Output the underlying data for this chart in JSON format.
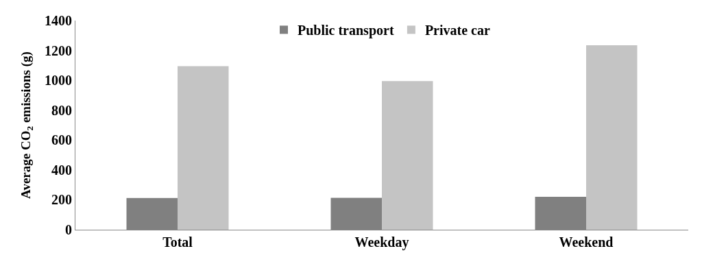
{
  "chart_data": {
    "type": "bar",
    "ylabel": "Average CO$_{2}$ emissions (g)",
    "categories": [
      "Total",
      "Weekday",
      "Weekend"
    ],
    "series": [
      {
        "name": "Public transport",
        "color": "#808080",
        "values": [
          212,
          213,
          220
        ]
      },
      {
        "name": "Private car",
        "color": "#c4c4c4",
        "values": [
          1095,
          995,
          1235
        ]
      }
    ],
    "ylim": [
      0,
      1400
    ],
    "yticks": [
      0,
      200,
      400,
      600,
      800,
      1000,
      1200,
      1400
    ],
    "legend": "top"
  }
}
